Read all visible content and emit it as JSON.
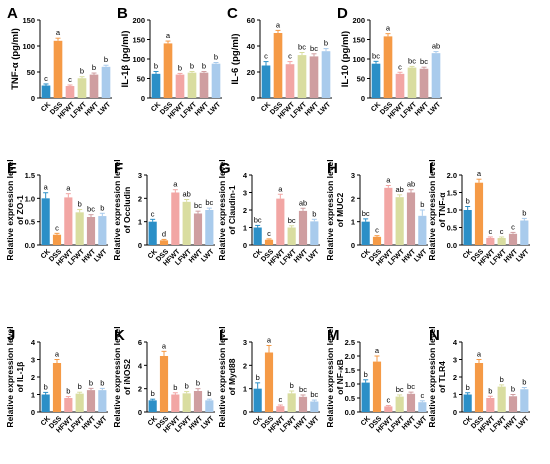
{
  "colors": {
    "CK": "#2b8fc7",
    "DSS": "#f59a46",
    "HFWT": "#f2a6a4",
    "LFWT": "#d9dda0",
    "HWT": "#cf9ea0",
    "LWT": "#a9cbec",
    "axis": "#000000"
  },
  "chart_data": [
    {
      "panel": "A",
      "type": "bar",
      "ylabel": "TNF-α (pg/ml)",
      "ylim": [
        0,
        150
      ],
      "yticks": [
        0,
        50,
        100,
        150
      ],
      "categories": [
        "CK",
        "DSS",
        "HFWT",
        "LFWT",
        "HWT",
        "LWT"
      ],
      "values": [
        24,
        110,
        23,
        38,
        45,
        60
      ],
      "errors": [
        3,
        5,
        2,
        3,
        3,
        3
      ],
      "labels": [
        "c",
        "a",
        "c",
        "b",
        "b",
        "b"
      ]
    },
    {
      "panel": "B",
      "type": "bar",
      "ylabel": "IL-1β (pg/ml)",
      "ylim": [
        0,
        200
      ],
      "yticks": [
        0,
        50,
        100,
        150,
        200
      ],
      "categories": [
        "CK",
        "DSS",
        "HFWT",
        "LFWT",
        "HWT",
        "LWT"
      ],
      "values": [
        62,
        140,
        60,
        65,
        65,
        88
      ],
      "errors": [
        6,
        6,
        3,
        3,
        3,
        3
      ],
      "labels": [
        "b",
        "a",
        "b",
        "b",
        "b",
        "b"
      ]
    },
    {
      "panel": "C",
      "type": "bar",
      "ylabel": "IL-6 (pg/ml)",
      "ylim": [
        0,
        60
      ],
      "yticks": [
        0,
        20,
        40,
        60
      ],
      "categories": [
        "CK",
        "DSS",
        "HFWT",
        "LFWT",
        "HWT",
        "LWT"
      ],
      "values": [
        25,
        50,
        26,
        33,
        32,
        36
      ],
      "errors": [
        3,
        2,
        2,
        2,
        2,
        2
      ],
      "labels": [
        "c",
        "a",
        "c",
        "bc",
        "bc",
        "b"
      ]
    },
    {
      "panel": "D",
      "type": "bar",
      "ylabel": "IL-10 (pg/ml)",
      "ylim": [
        0,
        200
      ],
      "yticks": [
        0,
        50,
        100,
        150,
        200
      ],
      "categories": [
        "CK",
        "DSS",
        "HFWT",
        "LFWT",
        "HWT",
        "LWT"
      ],
      "values": [
        88,
        158,
        62,
        78,
        75,
        115
      ],
      "errors": [
        6,
        7,
        4,
        3,
        4,
        4
      ],
      "labels": [
        "bc",
        "a",
        "c",
        "bc",
        "bc",
        "ab"
      ]
    },
    {
      "panel": "E",
      "type": "bar",
      "ylabel": "Relative expression level of ZO-1",
      "ylim": [
        0,
        1.5
      ],
      "yticks": [
        0,
        0.5,
        1.0,
        1.5
      ],
      "categories": [
        "CK",
        "DSS",
        "HFWT",
        "LFWT",
        "HWT",
        "LWT"
      ],
      "values": [
        1.0,
        0.22,
        1.02,
        0.7,
        0.6,
        0.62
      ],
      "errors": [
        0.12,
        0.03,
        0.08,
        0.06,
        0.05,
        0.06
      ],
      "labels": [
        "a",
        "c",
        "a",
        "b",
        "bc",
        "b"
      ]
    },
    {
      "panel": "F",
      "type": "bar",
      "ylabel": "Relative expression level of Occludin",
      "ylim": [
        0,
        3
      ],
      "yticks": [
        0,
        1,
        2,
        3
      ],
      "categories": [
        "CK",
        "DSS",
        "HFWT",
        "LFWT",
        "HWT",
        "LWT"
      ],
      "values": [
        1.0,
        0.2,
        2.25,
        1.85,
        1.35,
        1.5
      ],
      "errors": [
        0.1,
        0.04,
        0.12,
        0.1,
        0.1,
        0.08
      ],
      "labels": [
        "c",
        "d",
        "a",
        "ab",
        "bc",
        "bc"
      ]
    },
    {
      "panel": "G",
      "type": "bar",
      "ylabel": "Relative expression level of Claudin-1",
      "ylim": [
        0,
        4
      ],
      "yticks": [
        0,
        1,
        2,
        3,
        4
      ],
      "categories": [
        "CK",
        "DSS",
        "HFWT",
        "LFWT",
        "HWT",
        "LWT"
      ],
      "values": [
        1.0,
        0.3,
        2.65,
        1.0,
        1.95,
        1.35
      ],
      "errors": [
        0.12,
        0.05,
        0.25,
        0.1,
        0.15,
        0.12
      ],
      "labels": [
        "bc",
        "c",
        "a",
        "bc",
        "ab",
        "b"
      ]
    },
    {
      "panel": "H",
      "type": "bar",
      "ylabel": "Relative expression level of MUC2",
      "ylim": [
        0,
        3
      ],
      "yticks": [
        0,
        1,
        2,
        3
      ],
      "categories": [
        "CK",
        "DSS",
        "HFWT",
        "LFWT",
        "HWT",
        "LWT"
      ],
      "values": [
        1.0,
        0.35,
        2.45,
        2.05,
        2.25,
        1.25
      ],
      "errors": [
        0.12,
        0.05,
        0.1,
        0.1,
        0.12,
        0.25
      ],
      "labels": [
        "bc",
        "c",
        "a",
        "ab",
        "ab",
        "b"
      ]
    },
    {
      "panel": "I",
      "type": "bar",
      "ylabel": "Relative expression level of TNF-α",
      "ylim": [
        0,
        2.0
      ],
      "yticks": [
        0,
        0.5,
        1.0,
        1.5,
        2.0
      ],
      "categories": [
        "CK",
        "DSS",
        "HFWT",
        "LFWT",
        "HWT",
        "LWT"
      ],
      "values": [
        1.0,
        1.78,
        0.2,
        0.2,
        0.32,
        0.7
      ],
      "errors": [
        0.1,
        0.1,
        0.03,
        0.03,
        0.04,
        0.06
      ],
      "labels": [
        "b",
        "a",
        "c",
        "c",
        "c",
        "b"
      ]
    },
    {
      "panel": "J",
      "type": "bar",
      "ylabel": "Relative expression level of IL-1β",
      "ylim": [
        0,
        4
      ],
      "yticks": [
        0,
        1,
        2,
        3,
        4
      ],
      "categories": [
        "CK",
        "DSS",
        "HFWT",
        "LFWT",
        "HWT",
        "LWT"
      ],
      "values": [
        1.0,
        2.8,
        0.8,
        1.05,
        1.25,
        1.25
      ],
      "errors": [
        0.12,
        0.2,
        0.08,
        0.08,
        0.1,
        0.1
      ],
      "labels": [
        "b",
        "a",
        "b",
        "b",
        "b",
        "b"
      ]
    },
    {
      "panel": "K",
      "type": "bar",
      "ylabel": "Relative expression level of iNOS2",
      "ylim": [
        0,
        6
      ],
      "yticks": [
        0,
        2,
        4,
        6
      ],
      "categories": [
        "CK",
        "DSS",
        "HFWT",
        "LFWT",
        "HWT",
        "LWT"
      ],
      "values": [
        1.0,
        4.8,
        1.5,
        1.6,
        1.8,
        1.0
      ],
      "errors": [
        0.1,
        0.4,
        0.15,
        0.15,
        0.2,
        0.1
      ],
      "labels": [
        "b",
        "a",
        "b",
        "b",
        "b",
        "b"
      ]
    },
    {
      "panel": "L",
      "type": "bar",
      "ylabel": "Relative expression level of Myd88",
      "ylim": [
        0,
        3
      ],
      "yticks": [
        0,
        1,
        2,
        3
      ],
      "categories": [
        "CK",
        "DSS",
        "HFWT",
        "LFWT",
        "HWT",
        "LWT"
      ],
      "values": [
        1.0,
        2.55,
        0.25,
        0.8,
        0.65,
        0.45
      ],
      "errors": [
        0.25,
        0.3,
        0.05,
        0.1,
        0.08,
        0.06
      ],
      "labels": [
        "b",
        "a",
        "c",
        "b",
        "bc",
        "bc"
      ]
    },
    {
      "panel": "M",
      "type": "bar",
      "ylabel": "Relative expression level of NF-κB",
      "ylim": [
        0,
        2.5
      ],
      "yticks": [
        0,
        0.5,
        1.0,
        1.5,
        2.0,
        2.5
      ],
      "categories": [
        "CK",
        "DSS",
        "HFWT",
        "LFWT",
        "HWT",
        "LWT"
      ],
      "values": [
        1.05,
        1.8,
        0.2,
        0.55,
        0.65,
        0.35
      ],
      "errors": [
        0.1,
        0.2,
        0.03,
        0.06,
        0.06,
        0.05
      ],
      "labels": [
        "b",
        "a",
        "c",
        "bc",
        "bc",
        "c"
      ]
    },
    {
      "panel": "N",
      "type": "bar",
      "ylabel": "Relative expression level of TLR4",
      "ylim": [
        0,
        4
      ],
      "yticks": [
        0,
        1,
        2,
        3,
        4
      ],
      "categories": [
        "CK",
        "DSS",
        "HFWT",
        "LFWT",
        "HWT",
        "LWT"
      ],
      "values": [
        1.0,
        2.8,
        0.8,
        1.45,
        0.9,
        1.3
      ],
      "errors": [
        0.1,
        0.2,
        0.1,
        0.1,
        0.1,
        0.1
      ],
      "labels": [
        "b",
        "a",
        "b",
        "b",
        "b",
        "b"
      ]
    }
  ]
}
